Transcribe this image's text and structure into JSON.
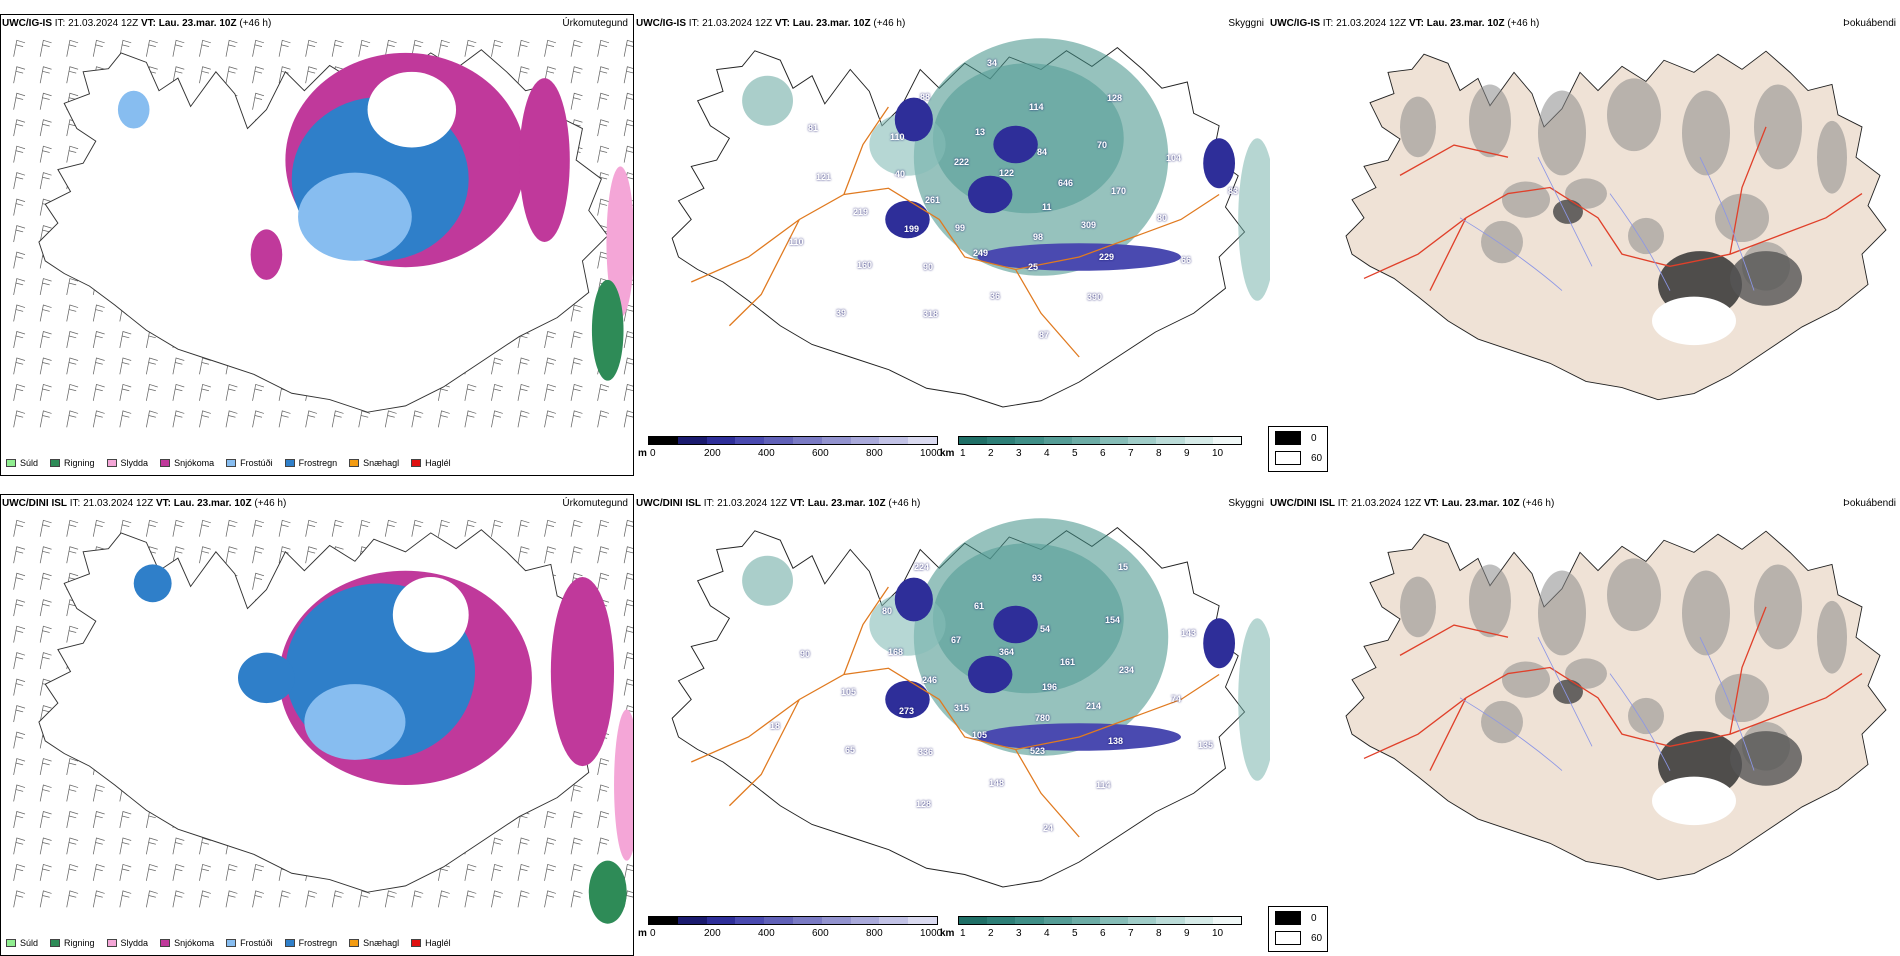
{
  "rows": [
    {
      "model": "UWC/IG-IS",
      "it_label": "IT:",
      "it_value": "21.03.2024 12Z",
      "vt_label": "VT:",
      "vt_value": "Lau. 23.mar. 10Z",
      "lead": "(+46 h)",
      "panels": [
        "Úrkomutegund",
        "Skyggni",
        "Þokuábendi"
      ],
      "vis_labels": [
        "11",
        "99",
        "122",
        "98",
        "261",
        "646",
        "249",
        "222",
        "309",
        "199",
        "84",
        "25",
        "40",
        "170",
        "90",
        "13",
        "229",
        "219",
        "70",
        "36",
        "110",
        "80",
        "160",
        "114",
        "390",
        "121",
        "104",
        "318",
        "88",
        "66",
        "110",
        "128",
        "87",
        "81",
        "83",
        "39",
        "34"
      ]
    },
    {
      "model": "UWC/DINI ISL",
      "it_label": "IT:",
      "it_value": "21.03.2024 12Z",
      "vt_label": "VT:",
      "vt_value": "Lau. 23.mar. 10Z",
      "lead": "(+46 h)",
      "panels": [
        "Úrkomutegund",
        "Skyggni",
        "Þokuábendi"
      ],
      "vis_labels": [
        "196",
        "315",
        "364",
        "780",
        "246",
        "161",
        "105",
        "67",
        "214",
        "273",
        "54",
        "523",
        "168",
        "234",
        "336",
        "61",
        "138",
        "105",
        "154",
        "148",
        "80",
        "74",
        "65",
        "93",
        "114",
        "90",
        "143",
        "128",
        "224",
        "135",
        "18",
        "15",
        "24"
      ]
    }
  ],
  "precip_legend": [
    {
      "label": "Súld",
      "color": "#90ee90"
    },
    {
      "label": "Rigning",
      "color": "#2e8b57"
    },
    {
      "label": "Slydda",
      "color": "#f4a6d7"
    },
    {
      "label": "Snjókoma",
      "color": "#c0399b"
    },
    {
      "label": "Frostúði",
      "color": "#87bdf0"
    },
    {
      "label": "Frostregn",
      "color": "#2f7fc9"
    },
    {
      "label": "Snæhagl",
      "color": "#f39c12"
    },
    {
      "label": "Haglél",
      "color": "#e01010"
    }
  ],
  "cbar_m": {
    "unit": "m",
    "ticks": [
      "0",
      "200",
      "400",
      "600",
      "800",
      "1000"
    ],
    "colors": [
      "#000000",
      "#1a1a6e",
      "#2e2e99",
      "#4a4ab0",
      "#6161b8",
      "#7a7ac4",
      "#9393cf",
      "#a9a9da",
      "#c2c2e6",
      "#dadaf0"
    ]
  },
  "cbar_km": {
    "unit": "km",
    "ticks": [
      "1",
      "2",
      "3",
      "4",
      "5",
      "6",
      "7",
      "8",
      "9",
      "10"
    ],
    "colors": [
      "#1f6f66",
      "#2d7f77",
      "#3f8f87",
      "#559d96",
      "#6dada6",
      "#86bdb7",
      "#a0cdc8",
      "#bbdcd8",
      "#d6ebe8",
      "#f0f8f7"
    ]
  },
  "fog_legend": [
    {
      "value": "0",
      "color": "#000000"
    },
    {
      "value": "60",
      "color": "#ffffff"
    }
  ]
}
